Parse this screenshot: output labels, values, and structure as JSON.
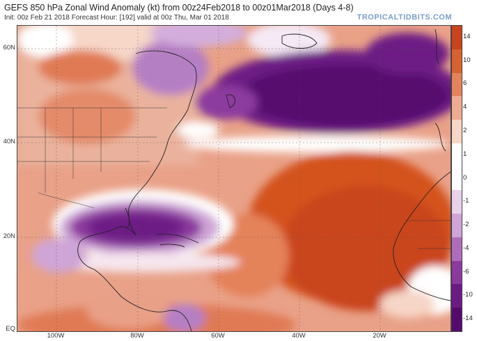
{
  "header": {
    "title": "GEFS 850 hPa Zonal Wind Anomaly (kt) from 00z24Feb2018 to 00z01Mar2018 (Days 4-8)",
    "subtitle": "Init: 00z Feb 21 2018   Forecast Hour: [192]   valid at 00z Thu, Mar 01 2018",
    "brand": "TROPICALTIDBITS.COM"
  },
  "axes": {
    "lat_labels": [
      "60N",
      "40N",
      "20N",
      "EQ"
    ],
    "lon_labels": [
      "100W",
      "80W",
      "60W",
      "40W",
      "20W"
    ]
  },
  "colorbar": {
    "labels": [
      "14",
      "10",
      "6",
      "4",
      "2",
      "1",
      "0",
      "-1",
      "-2",
      "-4",
      "-6",
      "-10",
      "-14"
    ],
    "colors": [
      "#c9441c",
      "#d8622f",
      "#e4825a",
      "#edab8f",
      "#f6d6c6",
      "#ffffff",
      "#ffffff",
      "#e7d2ea",
      "#cfa4d6",
      "#ad6dbc",
      "#8c3a9f",
      "#6d1a85",
      "#560a6e"
    ]
  }
}
